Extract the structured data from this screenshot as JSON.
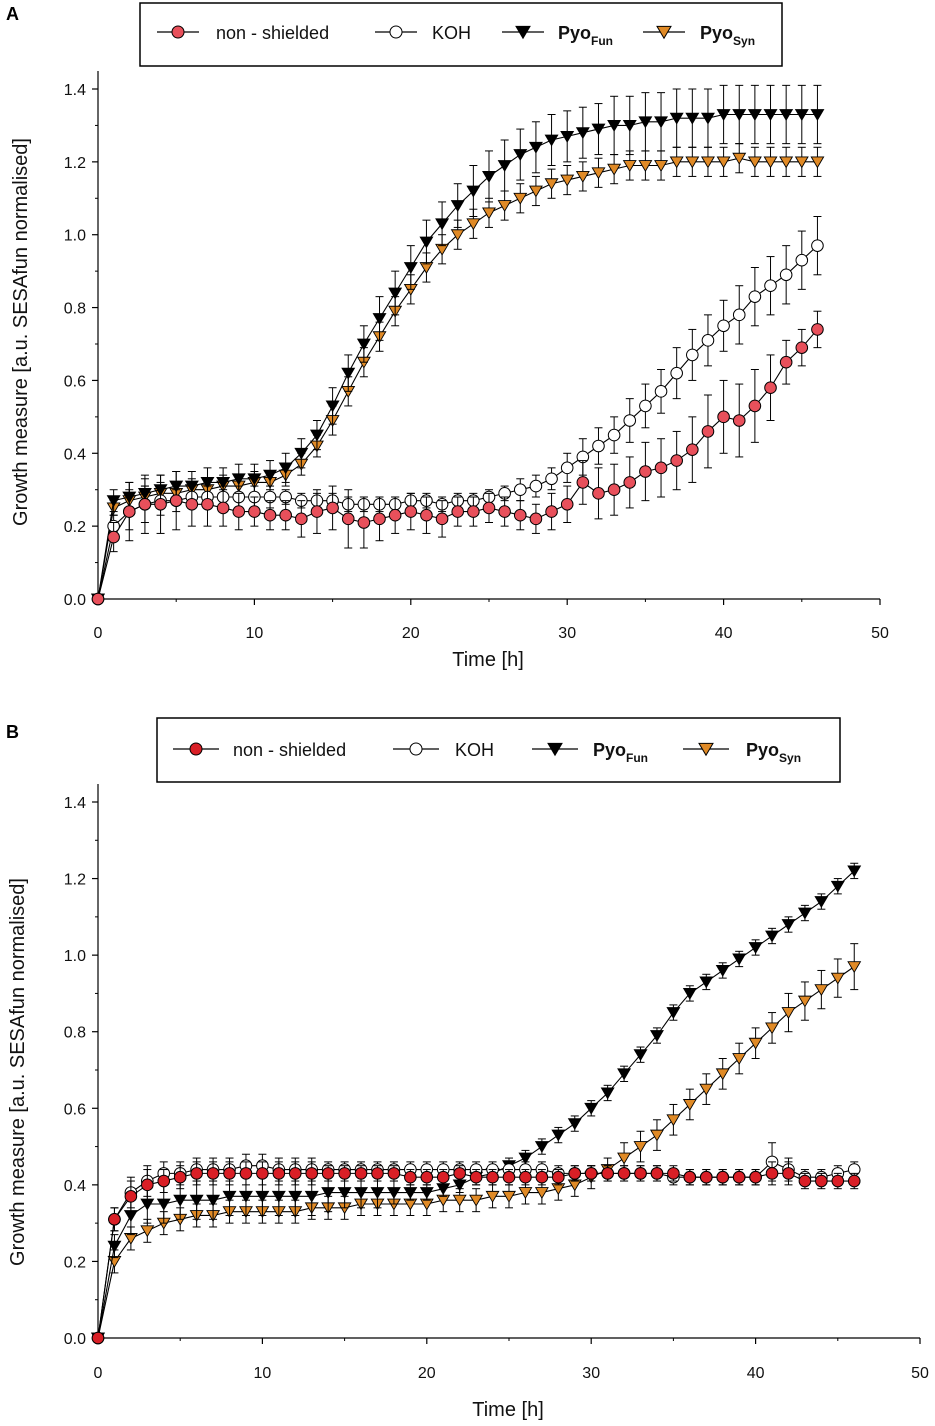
{
  "colors": {
    "non_shielded": "#e8505b",
    "non_shielded_b": "#d91f26",
    "koh": "#ffffff",
    "pyo_fun": "#000000",
    "pyo_syn": "#e08a26"
  },
  "chart_data": [
    {
      "panel": "A",
      "type": "line",
      "xlabel": "Time [h]",
      "ylabel": "Growth measure [a.u. SESAfun normalised]",
      "xlim": [
        0,
        50
      ],
      "ylim": [
        0,
        1.4
      ],
      "xticks": [
        "0",
        "10",
        "20",
        "30",
        "40",
        "50"
      ],
      "yticks": [
        "0.0",
        "0.2",
        "0.4",
        "0.6",
        "0.8",
        "1.0",
        "1.2",
        "1.4"
      ],
      "legend": {
        "non_shielded": "non - shielded",
        "koh": "KOH",
        "pyo_fun_main": "Pyo",
        "pyo_fun_sub": "Fun",
        "pyo_syn_main": "Pyo",
        "pyo_syn_sub": "Syn"
      },
      "series": [
        {
          "name": "non - shielded",
          "marker": "circle",
          "values": [
            0,
            0.17,
            0.24,
            0.26,
            0.26,
            0.27,
            0.26,
            0.26,
            0.25,
            0.24,
            0.24,
            0.23,
            0.23,
            0.22,
            0.24,
            0.25,
            0.22,
            0.21,
            0.22,
            0.23,
            0.24,
            0.23,
            0.22,
            0.24,
            0.24,
            0.25,
            0.24,
            0.23,
            0.22,
            0.24,
            0.26,
            0.32,
            0.29,
            0.3,
            0.32,
            0.35,
            0.36,
            0.38,
            0.41,
            0.46,
            0.5,
            0.49,
            0.53,
            0.58,
            0.65,
            0.69,
            0.74
          ],
          "errors": [
            0,
            0.04,
            0.08,
            0.08,
            0.08,
            0.08,
            0.06,
            0.06,
            0.05,
            0.05,
            0.04,
            0.04,
            0.04,
            0.05,
            0.06,
            0.06,
            0.08,
            0.07,
            0.06,
            0.05,
            0.05,
            0.05,
            0.05,
            0.04,
            0.04,
            0.04,
            0.04,
            0.04,
            0.04,
            0.05,
            0.05,
            0.06,
            0.07,
            0.07,
            0.07,
            0.08,
            0.08,
            0.08,
            0.09,
            0.1,
            0.1,
            0.1,
            0.1,
            0.09,
            0.06,
            0.05,
            0.05
          ]
        },
        {
          "name": "KOH",
          "marker": "circle",
          "values": [
            0,
            0.2,
            0.24,
            0.26,
            0.27,
            0.27,
            0.28,
            0.28,
            0.28,
            0.28,
            0.28,
            0.28,
            0.28,
            0.27,
            0.27,
            0.27,
            0.26,
            0.26,
            0.26,
            0.26,
            0.27,
            0.27,
            0.26,
            0.27,
            0.27,
            0.28,
            0.29,
            0.3,
            0.31,
            0.33,
            0.36,
            0.39,
            0.42,
            0.45,
            0.49,
            0.53,
            0.57,
            0.62,
            0.67,
            0.71,
            0.75,
            0.78,
            0.83,
            0.86,
            0.89,
            0.93,
            0.97
          ],
          "errors": [
            0,
            0.03,
            0.05,
            0.05,
            0.04,
            0.03,
            0.03,
            0.03,
            0.03,
            0.03,
            0.03,
            0.03,
            0.02,
            0.02,
            0.02,
            0.02,
            0.02,
            0.02,
            0.02,
            0.02,
            0.02,
            0.02,
            0.02,
            0.02,
            0.02,
            0.02,
            0.02,
            0.03,
            0.03,
            0.03,
            0.04,
            0.05,
            0.05,
            0.05,
            0.06,
            0.06,
            0.06,
            0.07,
            0.07,
            0.07,
            0.07,
            0.08,
            0.08,
            0.08,
            0.08,
            0.08,
            0.08
          ]
        },
        {
          "name": "PyoFun",
          "marker": "triangle-down",
          "values": [
            0,
            0.27,
            0.28,
            0.29,
            0.3,
            0.31,
            0.31,
            0.32,
            0.32,
            0.33,
            0.33,
            0.34,
            0.36,
            0.4,
            0.45,
            0.53,
            0.62,
            0.7,
            0.77,
            0.84,
            0.91,
            0.98,
            1.03,
            1.08,
            1.12,
            1.16,
            1.19,
            1.22,
            1.24,
            1.26,
            1.27,
            1.28,
            1.29,
            1.3,
            1.3,
            1.31,
            1.31,
            1.32,
            1.32,
            1.32,
            1.33,
            1.33,
            1.33,
            1.33,
            1.33,
            1.33,
            1.33
          ],
          "errors": [
            0,
            0.03,
            0.04,
            0.04,
            0.04,
            0.04,
            0.04,
            0.04,
            0.04,
            0.04,
            0.04,
            0.04,
            0.04,
            0.04,
            0.04,
            0.05,
            0.05,
            0.05,
            0.06,
            0.06,
            0.06,
            0.06,
            0.06,
            0.06,
            0.07,
            0.07,
            0.07,
            0.07,
            0.07,
            0.07,
            0.07,
            0.07,
            0.07,
            0.08,
            0.08,
            0.08,
            0.08,
            0.08,
            0.08,
            0.08,
            0.08,
            0.08,
            0.08,
            0.08,
            0.08,
            0.08,
            0.08
          ]
        },
        {
          "name": "PyoSyn",
          "marker": "triangle-down",
          "values": [
            0,
            0.25,
            0.27,
            0.28,
            0.29,
            0.29,
            0.3,
            0.3,
            0.31,
            0.31,
            0.32,
            0.32,
            0.34,
            0.37,
            0.42,
            0.49,
            0.57,
            0.65,
            0.72,
            0.79,
            0.85,
            0.91,
            0.96,
            1.0,
            1.03,
            1.06,
            1.08,
            1.1,
            1.12,
            1.14,
            1.15,
            1.16,
            1.17,
            1.18,
            1.19,
            1.19,
            1.19,
            1.2,
            1.2,
            1.2,
            1.2,
            1.21,
            1.2,
            1.2,
            1.2,
            1.2,
            1.2
          ],
          "errors": [
            0,
            0.02,
            0.03,
            0.03,
            0.03,
            0.03,
            0.03,
            0.03,
            0.03,
            0.03,
            0.03,
            0.03,
            0.03,
            0.03,
            0.03,
            0.04,
            0.04,
            0.04,
            0.04,
            0.04,
            0.04,
            0.04,
            0.04,
            0.04,
            0.04,
            0.04,
            0.04,
            0.04,
            0.04,
            0.04,
            0.04,
            0.04,
            0.04,
            0.04,
            0.04,
            0.04,
            0.04,
            0.04,
            0.04,
            0.04,
            0.04,
            0.04,
            0.04,
            0.04,
            0.04,
            0.04,
            0.04
          ]
        }
      ]
    },
    {
      "panel": "B",
      "type": "line",
      "xlabel": "Time [h]",
      "ylabel": "Growth measure [a.u. SESAfun normalised]",
      "xlim": [
        0,
        50
      ],
      "ylim": [
        0,
        1.4
      ],
      "xticks": [
        "0",
        "10",
        "20",
        "30",
        "40",
        "50"
      ],
      "yticks": [
        "0.0",
        "0.2",
        "0.4",
        "0.6",
        "0.8",
        "1.0",
        "1.2",
        "1.4"
      ],
      "legend": {
        "non_shielded": "non - shielded",
        "koh": "KOH",
        "pyo_fun_main": "Pyo",
        "pyo_fun_sub": "Fun",
        "pyo_syn_main": "Pyo",
        "pyo_syn_sub": "Syn"
      },
      "series": [
        {
          "name": "non - shielded",
          "marker": "circle",
          "values": [
            0,
            0.31,
            0.37,
            0.4,
            0.41,
            0.42,
            0.43,
            0.43,
            0.43,
            0.43,
            0.43,
            0.43,
            0.43,
            0.43,
            0.43,
            0.43,
            0.43,
            0.43,
            0.43,
            0.42,
            0.42,
            0.42,
            0.43,
            0.42,
            0.42,
            0.42,
            0.42,
            0.42,
            0.42,
            0.43,
            0.43,
            0.43,
            0.43,
            0.43,
            0.43,
            0.43,
            0.42,
            0.42,
            0.42,
            0.42,
            0.42,
            0.43,
            0.43,
            0.41,
            0.41,
            0.41,
            0.41
          ],
          "errors": [
            0,
            0.03,
            0.04,
            0.04,
            0.03,
            0.03,
            0.03,
            0.03,
            0.03,
            0.03,
            0.03,
            0.03,
            0.03,
            0.03,
            0.02,
            0.02,
            0.02,
            0.02,
            0.02,
            0.02,
            0.02,
            0.02,
            0.02,
            0.02,
            0.02,
            0.02,
            0.02,
            0.02,
            0.02,
            0.02,
            0.02,
            0.02,
            0.02,
            0.02,
            0.02,
            0.02,
            0.02,
            0.02,
            0.02,
            0.02,
            0.02,
            0.03,
            0.03,
            0.02,
            0.02,
            0.02,
            0.02
          ]
        },
        {
          "name": "KOH",
          "marker": "circle",
          "values": [
            0,
            0.31,
            0.38,
            0.41,
            0.43,
            0.43,
            0.44,
            0.44,
            0.44,
            0.45,
            0.45,
            0.44,
            0.44,
            0.44,
            0.44,
            0.44,
            0.44,
            0.44,
            0.44,
            0.44,
            0.44,
            0.44,
            0.44,
            0.44,
            0.44,
            0.44,
            0.44,
            0.44,
            0.43,
            0.43,
            0.43,
            0.43,
            0.43,
            0.43,
            0.43,
            0.42,
            0.42,
            0.42,
            0.42,
            0.42,
            0.42,
            0.46,
            0.44,
            0.42,
            0.42,
            0.43,
            0.44
          ],
          "errors": [
            0,
            0.03,
            0.04,
            0.04,
            0.03,
            0.03,
            0.03,
            0.03,
            0.03,
            0.03,
            0.03,
            0.03,
            0.03,
            0.03,
            0.02,
            0.02,
            0.02,
            0.02,
            0.02,
            0.02,
            0.02,
            0.02,
            0.02,
            0.02,
            0.02,
            0.02,
            0.02,
            0.02,
            0.02,
            0.02,
            0.02,
            0.02,
            0.02,
            0.02,
            0.02,
            0.02,
            0.02,
            0.02,
            0.02,
            0.02,
            0.02,
            0.05,
            0.03,
            0.02,
            0.02,
            0.02,
            0.02
          ]
        },
        {
          "name": "PyoFun",
          "marker": "triangle-down",
          "values": [
            0,
            0.24,
            0.32,
            0.35,
            0.35,
            0.36,
            0.36,
            0.36,
            0.37,
            0.37,
            0.37,
            0.37,
            0.37,
            0.37,
            0.38,
            0.38,
            0.38,
            0.38,
            0.38,
            0.38,
            0.38,
            0.39,
            0.4,
            0.42,
            0.43,
            0.45,
            0.47,
            0.5,
            0.53,
            0.56,
            0.6,
            0.64,
            0.69,
            0.74,
            0.79,
            0.85,
            0.9,
            0.93,
            0.96,
            0.99,
            1.02,
            1.05,
            1.08,
            1.11,
            1.14,
            1.18,
            1.22
          ],
          "errors": [
            0,
            0.03,
            0.05,
            0.05,
            0.05,
            0.05,
            0.05,
            0.05,
            0.05,
            0.05,
            0.05,
            0.05,
            0.05,
            0.05,
            0.05,
            0.04,
            0.04,
            0.04,
            0.03,
            0.02,
            0.02,
            0.02,
            0.02,
            0.02,
            0.02,
            0.02,
            0.02,
            0.02,
            0.02,
            0.02,
            0.02,
            0.02,
            0.02,
            0.02,
            0.02,
            0.02,
            0.02,
            0.02,
            0.02,
            0.02,
            0.02,
            0.02,
            0.02,
            0.02,
            0.02,
            0.02,
            0.02
          ]
        },
        {
          "name": "PyoSyn",
          "marker": "triangle-down",
          "values": [
            0,
            0.2,
            0.26,
            0.28,
            0.3,
            0.31,
            0.32,
            0.32,
            0.33,
            0.33,
            0.33,
            0.33,
            0.33,
            0.34,
            0.34,
            0.34,
            0.35,
            0.35,
            0.35,
            0.35,
            0.35,
            0.36,
            0.36,
            0.36,
            0.37,
            0.37,
            0.38,
            0.38,
            0.39,
            0.4,
            0.42,
            0.44,
            0.47,
            0.5,
            0.53,
            0.57,
            0.61,
            0.65,
            0.69,
            0.73,
            0.77,
            0.81,
            0.85,
            0.88,
            0.91,
            0.94,
            0.97
          ],
          "errors": [
            0,
            0.03,
            0.03,
            0.03,
            0.03,
            0.03,
            0.03,
            0.03,
            0.03,
            0.03,
            0.03,
            0.03,
            0.03,
            0.03,
            0.03,
            0.03,
            0.03,
            0.03,
            0.03,
            0.03,
            0.03,
            0.03,
            0.03,
            0.03,
            0.03,
            0.03,
            0.03,
            0.03,
            0.03,
            0.03,
            0.03,
            0.03,
            0.04,
            0.04,
            0.04,
            0.04,
            0.04,
            0.04,
            0.04,
            0.04,
            0.04,
            0.04,
            0.05,
            0.05,
            0.05,
            0.05,
            0.06
          ]
        }
      ]
    }
  ]
}
